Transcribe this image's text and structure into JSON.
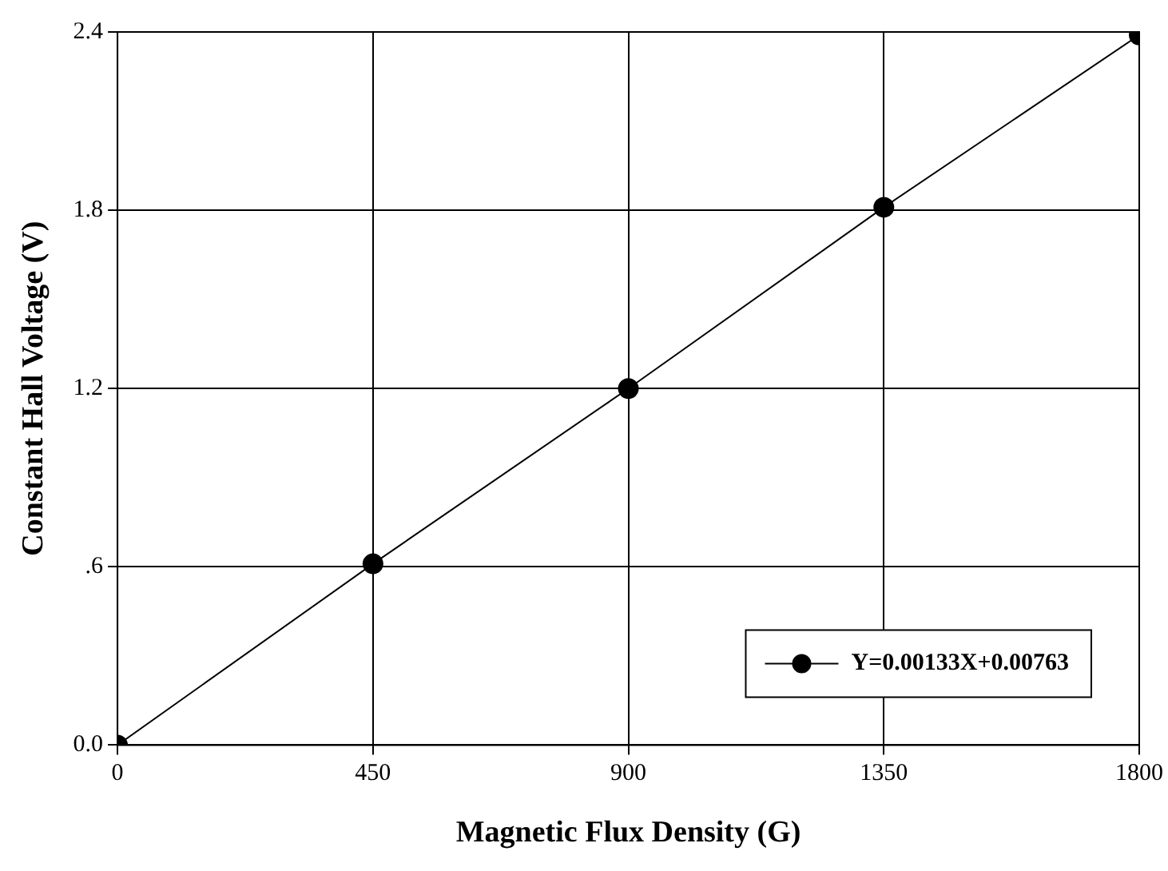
{
  "chart_data": {
    "type": "line",
    "xlabel": "Magnetic Flux Density (G)",
    "ylabel": "Constant Hall Voltage (V)",
    "x": [
      0,
      450,
      900,
      1350,
      1800
    ],
    "series": [
      {
        "name": "Y=0.00133X+0.00763",
        "color": "#000000",
        "values": [
          0,
          0.61,
          1.2,
          1.81,
          2.39
        ]
      }
    ],
    "xlim": [
      0,
      1800
    ],
    "xticks": [
      0,
      450,
      900,
      1350,
      1800
    ],
    "ylim": [
      0,
      2.4
    ],
    "yticks": [
      {
        "value": 0,
        "label": "0.0"
      },
      {
        "value": 0.6,
        "label": ".6"
      },
      1.2,
      1.8,
      2.4
    ],
    "grid": true,
    "legend": "bottom right",
    "marker": "circle",
    "line_style": "solid"
  }
}
